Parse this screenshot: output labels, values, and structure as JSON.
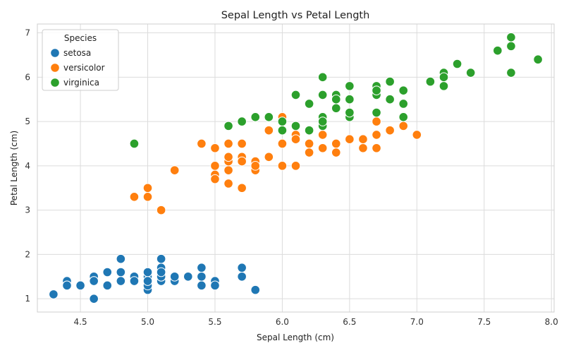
{
  "chart_data": {
    "type": "scatter",
    "title": "Sepal Length vs Petal Length",
    "xlabel": "Sepal Length (cm)",
    "ylabel": "Petal Length (cm)",
    "xlim": [
      4.18,
      8.02
    ],
    "ylim": [
      0.7,
      7.2
    ],
    "xticks": [
      "4.5",
      "5.0",
      "5.5",
      "6.0",
      "6.5",
      "7.0",
      "7.5",
      "8.0"
    ],
    "yticks": [
      "1",
      "2",
      "3",
      "4",
      "5",
      "6",
      "7"
    ],
    "grid": true,
    "legend": {
      "title": "Species",
      "placement": "top-left"
    },
    "series": [
      {
        "name": "setosa",
        "color": "#1f77b4",
        "points": [
          [
            5.1,
            1.4
          ],
          [
            4.9,
            1.4
          ],
          [
            4.7,
            1.3
          ],
          [
            4.6,
            1.5
          ],
          [
            5.0,
            1.4
          ],
          [
            5.4,
            1.7
          ],
          [
            4.6,
            1.4
          ],
          [
            5.0,
            1.5
          ],
          [
            4.4,
            1.4
          ],
          [
            4.9,
            1.5
          ],
          [
            5.4,
            1.5
          ],
          [
            4.8,
            1.6
          ],
          [
            4.8,
            1.4
          ],
          [
            4.3,
            1.1
          ],
          [
            5.8,
            1.2
          ],
          [
            5.7,
            1.5
          ],
          [
            5.4,
            1.3
          ],
          [
            5.1,
            1.4
          ],
          [
            5.7,
            1.7
          ],
          [
            5.1,
            1.5
          ],
          [
            5.4,
            1.7
          ],
          [
            5.1,
            1.5
          ],
          [
            4.6,
            1.0
          ],
          [
            5.1,
            1.7
          ],
          [
            4.8,
            1.9
          ],
          [
            5.0,
            1.6
          ],
          [
            5.0,
            1.6
          ],
          [
            5.2,
            1.5
          ],
          [
            5.2,
            1.4
          ],
          [
            4.7,
            1.6
          ],
          [
            4.8,
            1.6
          ],
          [
            5.4,
            1.5
          ],
          [
            5.2,
            1.5
          ],
          [
            5.5,
            1.4
          ],
          [
            4.9,
            1.5
          ],
          [
            5.0,
            1.2
          ],
          [
            5.5,
            1.3
          ],
          [
            4.9,
            1.4
          ],
          [
            4.4,
            1.3
          ],
          [
            5.1,
            1.5
          ],
          [
            5.0,
            1.3
          ],
          [
            4.5,
            1.3
          ],
          [
            4.4,
            1.3
          ],
          [
            5.0,
            1.6
          ],
          [
            5.1,
            1.9
          ],
          [
            4.8,
            1.4
          ],
          [
            5.1,
            1.6
          ],
          [
            4.6,
            1.4
          ],
          [
            5.3,
            1.5
          ],
          [
            5.0,
            1.4
          ]
        ]
      },
      {
        "name": "versicolor",
        "color": "#ff7f0e",
        "points": [
          [
            7.0,
            4.7
          ],
          [
            6.4,
            4.5
          ],
          [
            6.9,
            4.9
          ],
          [
            5.5,
            4.0
          ],
          [
            6.5,
            4.6
          ],
          [
            5.7,
            4.5
          ],
          [
            6.3,
            4.7
          ],
          [
            4.9,
            3.3
          ],
          [
            6.6,
            4.6
          ],
          [
            5.2,
            3.9
          ],
          [
            5.0,
            3.5
          ],
          [
            5.9,
            4.2
          ],
          [
            6.0,
            4.0
          ],
          [
            6.1,
            4.7
          ],
          [
            5.6,
            3.6
          ],
          [
            6.7,
            4.4
          ],
          [
            5.6,
            4.5
          ],
          [
            5.8,
            4.1
          ],
          [
            6.2,
            4.5
          ],
          [
            5.6,
            3.9
          ],
          [
            5.9,
            4.8
          ],
          [
            6.1,
            4.0
          ],
          [
            6.3,
            4.9
          ],
          [
            6.1,
            4.7
          ],
          [
            6.4,
            4.3
          ],
          [
            6.6,
            4.4
          ],
          [
            6.8,
            4.8
          ],
          [
            6.7,
            5.0
          ],
          [
            6.0,
            4.5
          ],
          [
            5.7,
            3.5
          ],
          [
            5.5,
            3.8
          ],
          [
            5.5,
            3.7
          ],
          [
            5.8,
            3.9
          ],
          [
            6.0,
            5.1
          ],
          [
            5.4,
            4.5
          ],
          [
            6.0,
            4.5
          ],
          [
            6.7,
            4.7
          ],
          [
            6.3,
            4.4
          ],
          [
            5.6,
            4.1
          ],
          [
            5.5,
            4.0
          ],
          [
            5.5,
            4.4
          ],
          [
            6.1,
            4.6
          ],
          [
            5.8,
            4.0
          ],
          [
            5.0,
            3.3
          ],
          [
            5.6,
            4.2
          ],
          [
            5.7,
            4.2
          ],
          [
            5.7,
            4.2
          ],
          [
            6.2,
            4.3
          ],
          [
            5.1,
            3.0
          ],
          [
            5.7,
            4.1
          ]
        ]
      },
      {
        "name": "virginica",
        "color": "#2ca02c",
        "points": [
          [
            6.3,
            6.0
          ],
          [
            5.8,
            5.1
          ],
          [
            7.1,
            5.9
          ],
          [
            6.3,
            5.6
          ],
          [
            6.5,
            5.8
          ],
          [
            7.6,
            6.6
          ],
          [
            4.9,
            4.5
          ],
          [
            7.3,
            6.3
          ],
          [
            6.7,
            5.8
          ],
          [
            7.2,
            6.1
          ],
          [
            6.5,
            5.1
          ],
          [
            6.4,
            5.3
          ],
          [
            6.8,
            5.5
          ],
          [
            5.7,
            5.0
          ],
          [
            5.8,
            5.1
          ],
          [
            6.4,
            5.3
          ],
          [
            6.5,
            5.5
          ],
          [
            7.7,
            6.7
          ],
          [
            7.7,
            6.9
          ],
          [
            6.0,
            5.0
          ],
          [
            6.9,
            5.7
          ],
          [
            5.6,
            4.9
          ],
          [
            7.7,
            6.7
          ],
          [
            6.3,
            4.9
          ],
          [
            6.7,
            5.7
          ],
          [
            7.2,
            6.0
          ],
          [
            6.2,
            4.8
          ],
          [
            6.1,
            4.9
          ],
          [
            6.4,
            5.6
          ],
          [
            7.2,
            5.8
          ],
          [
            7.4,
            6.1
          ],
          [
            7.9,
            6.4
          ],
          [
            6.4,
            5.6
          ],
          [
            6.3,
            5.1
          ],
          [
            6.1,
            5.6
          ],
          [
            7.7,
            6.1
          ],
          [
            6.3,
            5.6
          ],
          [
            6.4,
            5.5
          ],
          [
            6.0,
            4.8
          ],
          [
            6.9,
            5.4
          ],
          [
            6.7,
            5.6
          ],
          [
            6.9,
            5.1
          ],
          [
            5.8,
            5.1
          ],
          [
            6.8,
            5.9
          ],
          [
            6.7,
            5.7
          ],
          [
            6.7,
            5.2
          ],
          [
            6.3,
            5.0
          ],
          [
            6.5,
            5.2
          ],
          [
            6.2,
            5.4
          ],
          [
            5.9,
            5.1
          ]
        ]
      }
    ]
  }
}
